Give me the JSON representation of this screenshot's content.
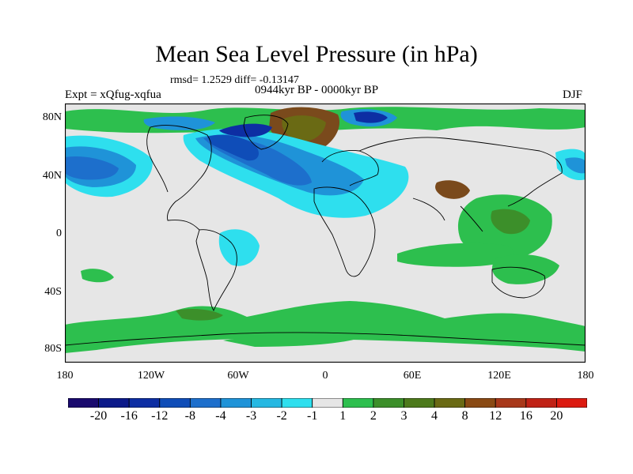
{
  "title": "Mean Sea Level Pressure (in hPa)",
  "stats": "rmsd= 1.2529 diff= -0.13147",
  "experiment": "Expt = xQfug-xqfua",
  "period": "0944kyr BP - 0000kyr BP",
  "season": "DJF",
  "lat_labels": [
    "80N",
    "40N",
    "0",
    "40S",
    "80S"
  ],
  "lon_labels": [
    "180",
    "120W",
    "60W",
    "0",
    "60E",
    "120E",
    "180"
  ],
  "colorbar": {
    "labels": [
      "-20",
      "-16",
      "-12",
      "-8",
      "-4",
      "-3",
      "-2",
      "-1",
      "1",
      "2",
      "3",
      "4",
      "8",
      "12",
      "16",
      "20"
    ],
    "colors": [
      "#1a0a6e",
      "#0c1a8a",
      "#0d2ea3",
      "#0f4db8",
      "#1d6fcc",
      "#1f93d8",
      "#25b8e2",
      "#2edfee",
      "#e6e6e6",
      "#2dbf4e",
      "#3c8f2a",
      "#4d7a1c",
      "#6a6a14",
      "#8a4a14",
      "#a8381a",
      "#c02216",
      "#dc1a10"
    ]
  },
  "colors": {
    "neutral": "#e6e6e6",
    "positive_light": "#2dbf4e",
    "negative_light": "#2edfee",
    "negative_mid": "#1f93d8",
    "negative_strong": "#1d6fcc",
    "brown": "#7a4a1c"
  }
}
